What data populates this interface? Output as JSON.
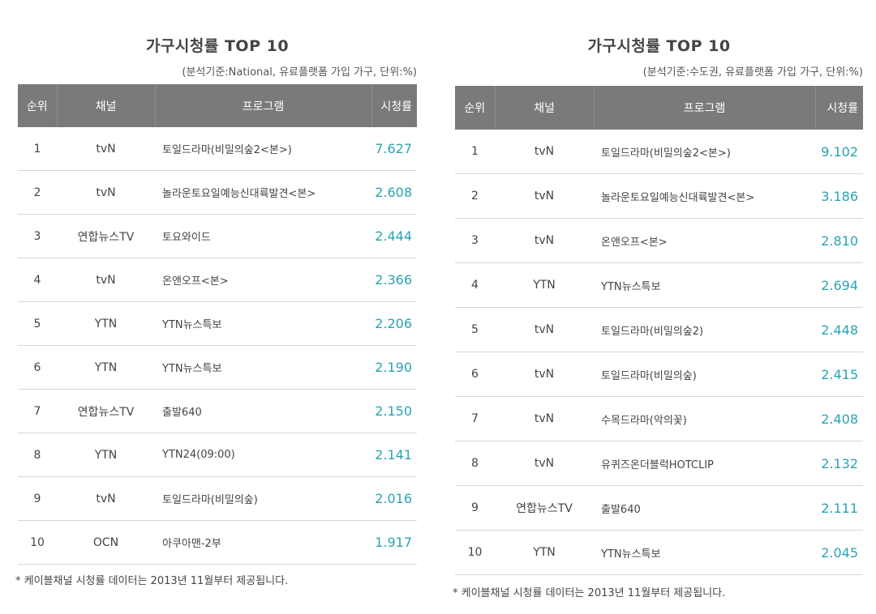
{
  "left_panel": {
    "title": "가구시청률 TOP 10",
    "subtitle": "(분석기준:National, 유료플랫폼 가입 가구, 단위:%)",
    "headers": {
      "rank": "순위",
      "channel": "채널",
      "program": "프로그램",
      "rating": "시청률"
    },
    "rows": [
      {
        "rank": "1",
        "channel": "tvN",
        "program": "토일드라마(비밀의숲2<본>)",
        "rating": "7.627"
      },
      {
        "rank": "2",
        "channel": "tvN",
        "program": "놀라운토요일예능신대륙발견<본>",
        "rating": "2.608"
      },
      {
        "rank": "3",
        "channel": "연합뉴스TV",
        "program": "토요와이드",
        "rating": "2.444"
      },
      {
        "rank": "4",
        "channel": "tvN",
        "program": "온앤오프<본>",
        "rating": "2.366"
      },
      {
        "rank": "5",
        "channel": "YTN",
        "program": "YTN뉴스특보",
        "rating": "2.206"
      },
      {
        "rank": "6",
        "channel": "YTN",
        "program": "YTN뉴스특보",
        "rating": "2.190"
      },
      {
        "rank": "7",
        "channel": "연합뉴스TV",
        "program": "출발640",
        "rating": "2.150"
      },
      {
        "rank": "8",
        "channel": "YTN",
        "program": "YTN24(09:00)",
        "rating": "2.141"
      },
      {
        "rank": "9",
        "channel": "tvN",
        "program": "토일드라마(비밀의숲)",
        "rating": "2.016"
      },
      {
        "rank": "10",
        "channel": "OCN",
        "program": "아쿠아맨-2부",
        "rating": "1.917"
      }
    ],
    "footnote": "* 케이블채널 시청률 데이터는 2013년 11월부터 제공됩니다."
  },
  "right_panel": {
    "title": "가구시청률 TOP 10",
    "subtitle": "(분석기준:수도권, 유료플랫폼 가입 가구, 단위:%)",
    "headers": {
      "rank": "순위",
      "channel": "채널",
      "program": "프로그램",
      "rating": "시청률"
    },
    "rows": [
      {
        "rank": "1",
        "channel": "tvN",
        "program": "토일드라마(비밀의숲2<본>)",
        "rating": "9.102"
      },
      {
        "rank": "2",
        "channel": "tvN",
        "program": "놀라운토요일예능신대륙발견<본>",
        "rating": "3.186"
      },
      {
        "rank": "3",
        "channel": "tvN",
        "program": "온앤오프<본>",
        "rating": "2.810"
      },
      {
        "rank": "4",
        "channel": "YTN",
        "program": "YTN뉴스특보",
        "rating": "2.694"
      },
      {
        "rank": "5",
        "channel": "tvN",
        "program": "토일드라마(비밀의숲2)",
        "rating": "2.448"
      },
      {
        "rank": "6",
        "channel": "tvN",
        "program": "토일드라마(비밀의숲)",
        "rating": "2.415"
      },
      {
        "rank": "7",
        "channel": "tvN",
        "program": "수목드라마(악의꽃)",
        "rating": "2.408"
      },
      {
        "rank": "8",
        "channel": "tvN",
        "program": "유퀴즈온더블럭HOTCLIP",
        "rating": "2.132"
      },
      {
        "rank": "9",
        "channel": "연합뉴스TV",
        "program": "출발640",
        "rating": "2.111"
      },
      {
        "rank": "10",
        "channel": "YTN",
        "program": "YTN뉴스특보",
        "rating": "2.045"
      }
    ],
    "footnote": "* 케이블채널 시청률 데이터는 2013년 11월부터 제공됩니다."
  },
  "colors": {
    "header_bg": "#7a7a7a",
    "rating_text": "#2aa3b3",
    "row_divider": "#d6d6d6"
  }
}
